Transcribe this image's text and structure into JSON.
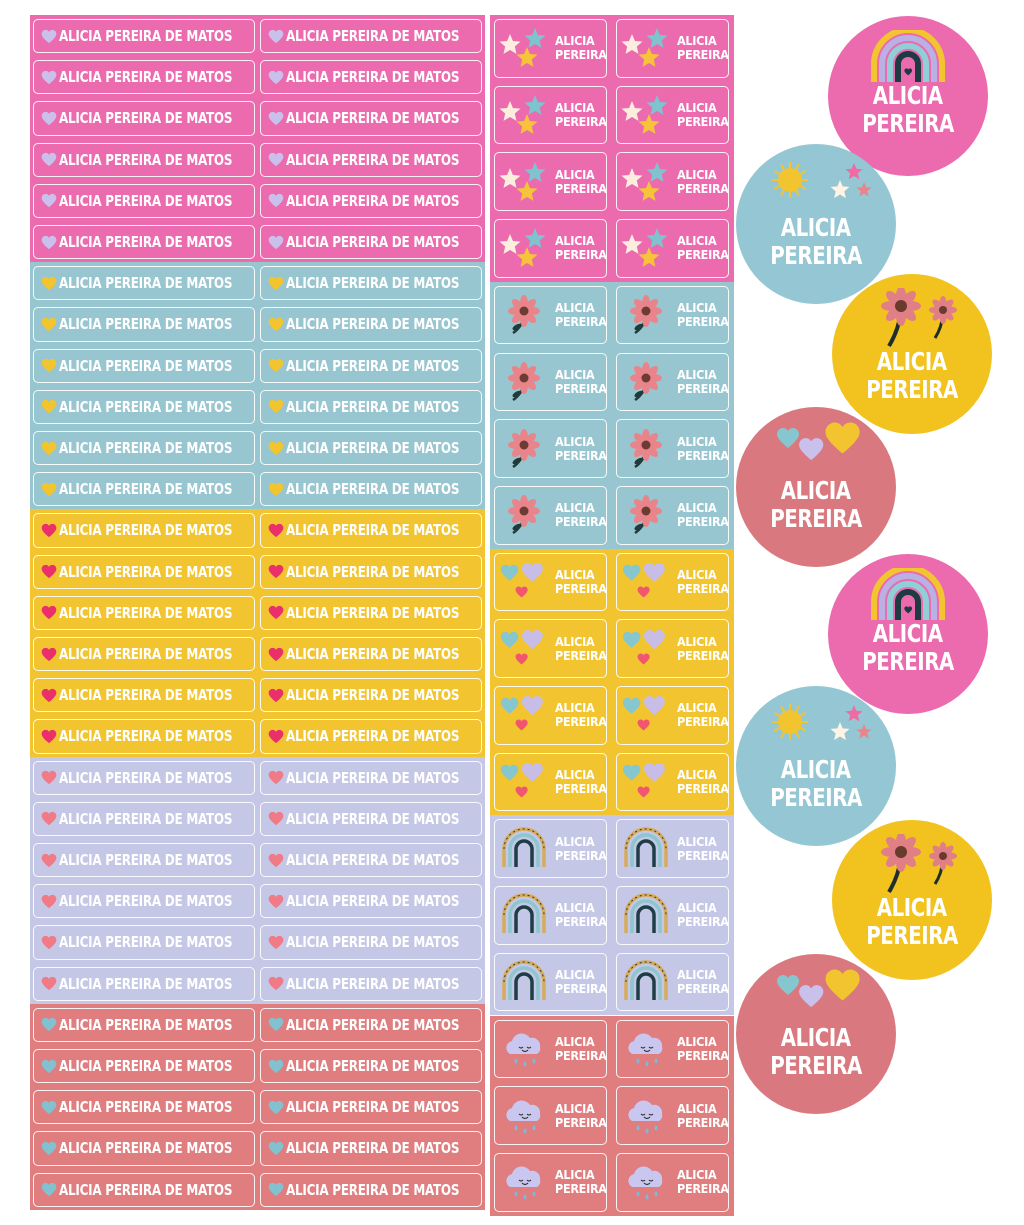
{
  "name_full": "ALICIA PEREIRA DE MATOS",
  "name_short": "ALICIA PEREIRA",
  "name_first": "ALICIA",
  "name_last": "PEREIRA",
  "colors": {
    "pink": "#ec6aae",
    "blue": "#97c5d0",
    "yellow": "#f2c530",
    "lavender": "#c4c7e6",
    "rose": "#df7d7f",
    "heart_lavender": "#c9c1ec",
    "heart_gold": "#f2c42e",
    "heart_red": "#ea2f6b",
    "heart_pink": "#f07a86",
    "heart_teal": "#82c1cf",
    "circle_blue": "#94c7d3",
    "circle_yellow": "#f2c31f",
    "circle_rose": "#d9797f"
  },
  "long_label_groups": [
    {
      "theme": "pink",
      "icon": "heart-icon",
      "icon_color": "heart_lavender",
      "rows": 6
    },
    {
      "theme": "blue",
      "icon": "heart-icon",
      "icon_color": "heart_gold",
      "rows": 6
    },
    {
      "theme": "yellow",
      "icon": "heart-icon",
      "icon_color": "heart_red",
      "rows": 6
    },
    {
      "theme": "lavender",
      "icon": "heart-icon",
      "icon_color": "heart_pink",
      "rows": 6
    },
    {
      "theme": "rose",
      "icon": "heart-icon",
      "icon_color": "heart_teal",
      "rows": 5
    }
  ],
  "square_label_groups": [
    {
      "theme": "pink",
      "icon": "stars-icon",
      "rows": 4
    },
    {
      "theme": "blue",
      "icon": "flower-icon",
      "rows": 4
    },
    {
      "theme": "yellow",
      "icon": "hearts-icon",
      "rows": 4
    },
    {
      "theme": "lavender",
      "icon": "rainbow-icon",
      "rows": 3
    },
    {
      "theme": "rose",
      "icon": "cloud-icon",
      "rows": 3
    }
  ],
  "circle_stickers": [
    {
      "theme": "pink",
      "icon": "rainbow-icon"
    },
    {
      "theme": "circle_blue",
      "icon": "sun-stars-icon"
    },
    {
      "theme": "circle_yellow",
      "icon": "flowers-icon"
    },
    {
      "theme": "circle_rose",
      "icon": "hearts-icon"
    },
    {
      "theme": "pink",
      "icon": "rainbow-icon"
    },
    {
      "theme": "circle_blue",
      "icon": "sun-stars-icon"
    },
    {
      "theme": "circle_yellow",
      "icon": "flowers-icon"
    },
    {
      "theme": "circle_rose",
      "icon": "hearts-icon"
    }
  ]
}
